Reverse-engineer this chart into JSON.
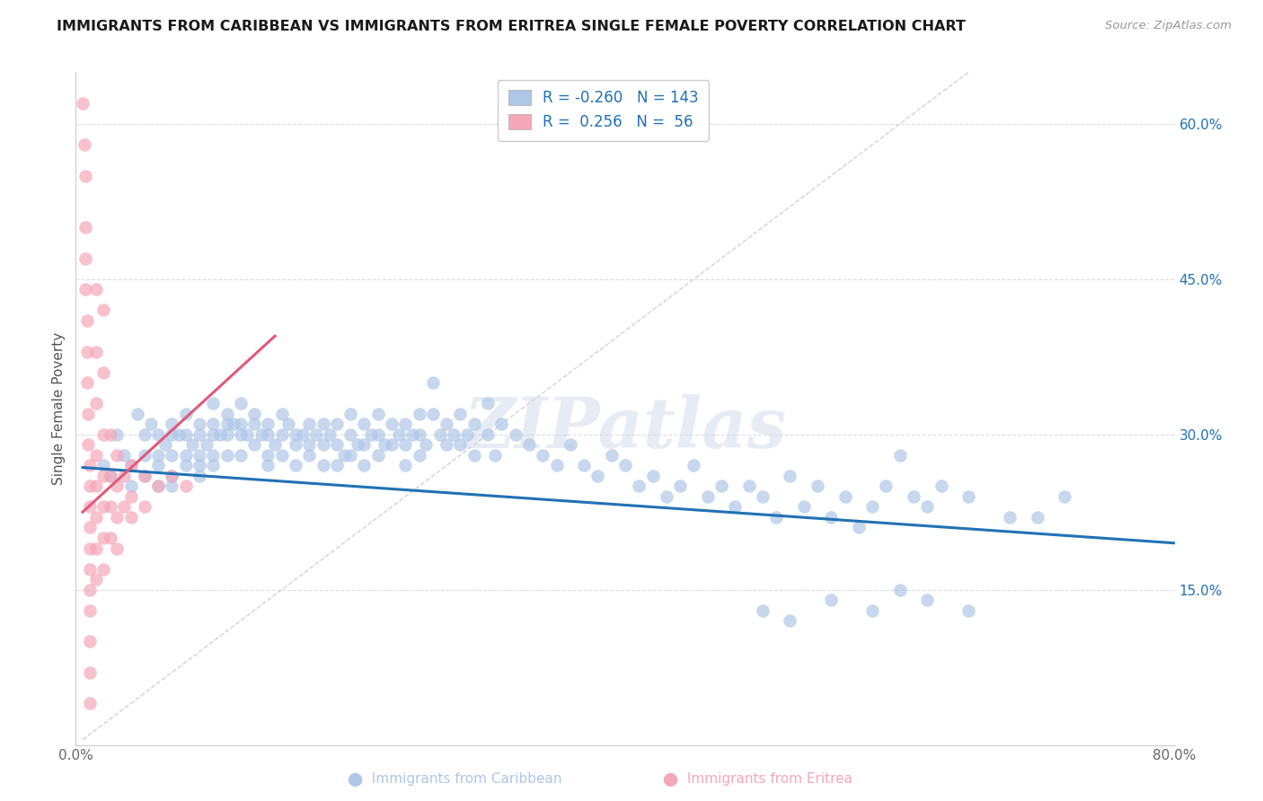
{
  "title": "IMMIGRANTS FROM CARIBBEAN VS IMMIGRANTS FROM ERITREA SINGLE FEMALE POVERTY CORRELATION CHART",
  "source": "Source: ZipAtlas.com",
  "ylabel": "Single Female Poverty",
  "x_min": 0.0,
  "x_max": 0.8,
  "y_min": 0.0,
  "y_max": 0.65,
  "y_tick_labels_right": [
    "15.0%",
    "30.0%",
    "45.0%",
    "60.0%"
  ],
  "y_ticks_right": [
    0.15,
    0.3,
    0.45,
    0.6
  ],
  "legend_r1": "-0.260",
  "legend_n1": "143",
  "legend_r2": "0.256",
  "legend_n2": "56",
  "caribbean_color": "#aec6e8",
  "eritrea_color": "#f4a7b9",
  "caribbean_line_color": "#2171b5",
  "eritrea_line_color": "#e05a7a",
  "dashed_line_color": "#c8c8c8",
  "watermark": "ZIPatlas",
  "carib_line_x0": 0.005,
  "carib_line_y0": 0.268,
  "carib_line_x1": 0.8,
  "carib_line_y1": 0.195,
  "erit_line_x0": 0.005,
  "erit_line_y0": 0.225,
  "erit_line_x1": 0.145,
  "erit_line_y1": 0.395,
  "caribbean_scatter": [
    [
      0.02,
      0.27
    ],
    [
      0.025,
      0.26
    ],
    [
      0.03,
      0.3
    ],
    [
      0.035,
      0.28
    ],
    [
      0.04,
      0.27
    ],
    [
      0.04,
      0.25
    ],
    [
      0.045,
      0.32
    ],
    [
      0.05,
      0.3
    ],
    [
      0.05,
      0.28
    ],
    [
      0.05,
      0.26
    ],
    [
      0.055,
      0.31
    ],
    [
      0.06,
      0.3
    ],
    [
      0.06,
      0.28
    ],
    [
      0.06,
      0.27
    ],
    [
      0.06,
      0.25
    ],
    [
      0.065,
      0.29
    ],
    [
      0.07,
      0.31
    ],
    [
      0.07,
      0.3
    ],
    [
      0.07,
      0.28
    ],
    [
      0.07,
      0.26
    ],
    [
      0.07,
      0.25
    ],
    [
      0.075,
      0.3
    ],
    [
      0.08,
      0.32
    ],
    [
      0.08,
      0.3
    ],
    [
      0.08,
      0.28
    ],
    [
      0.08,
      0.27
    ],
    [
      0.085,
      0.29
    ],
    [
      0.09,
      0.31
    ],
    [
      0.09,
      0.3
    ],
    [
      0.09,
      0.28
    ],
    [
      0.09,
      0.27
    ],
    [
      0.09,
      0.26
    ],
    [
      0.095,
      0.29
    ],
    [
      0.1,
      0.33
    ],
    [
      0.1,
      0.31
    ],
    [
      0.1,
      0.3
    ],
    [
      0.1,
      0.28
    ],
    [
      0.1,
      0.27
    ],
    [
      0.105,
      0.3
    ],
    [
      0.11,
      0.32
    ],
    [
      0.11,
      0.31
    ],
    [
      0.11,
      0.3
    ],
    [
      0.11,
      0.28
    ],
    [
      0.115,
      0.31
    ],
    [
      0.12,
      0.33
    ],
    [
      0.12,
      0.31
    ],
    [
      0.12,
      0.3
    ],
    [
      0.12,
      0.28
    ],
    [
      0.125,
      0.3
    ],
    [
      0.13,
      0.32
    ],
    [
      0.13,
      0.31
    ],
    [
      0.13,
      0.29
    ],
    [
      0.135,
      0.3
    ],
    [
      0.14,
      0.31
    ],
    [
      0.14,
      0.3
    ],
    [
      0.14,
      0.28
    ],
    [
      0.14,
      0.27
    ],
    [
      0.145,
      0.29
    ],
    [
      0.15,
      0.32
    ],
    [
      0.15,
      0.3
    ],
    [
      0.15,
      0.28
    ],
    [
      0.155,
      0.31
    ],
    [
      0.16,
      0.3
    ],
    [
      0.16,
      0.29
    ],
    [
      0.16,
      0.27
    ],
    [
      0.165,
      0.3
    ],
    [
      0.17,
      0.31
    ],
    [
      0.17,
      0.29
    ],
    [
      0.17,
      0.28
    ],
    [
      0.175,
      0.3
    ],
    [
      0.18,
      0.31
    ],
    [
      0.18,
      0.29
    ],
    [
      0.18,
      0.27
    ],
    [
      0.185,
      0.3
    ],
    [
      0.19,
      0.31
    ],
    [
      0.19,
      0.29
    ],
    [
      0.19,
      0.27
    ],
    [
      0.195,
      0.28
    ],
    [
      0.2,
      0.32
    ],
    [
      0.2,
      0.3
    ],
    [
      0.2,
      0.28
    ],
    [
      0.205,
      0.29
    ],
    [
      0.21,
      0.31
    ],
    [
      0.21,
      0.29
    ],
    [
      0.21,
      0.27
    ],
    [
      0.215,
      0.3
    ],
    [
      0.22,
      0.32
    ],
    [
      0.22,
      0.3
    ],
    [
      0.22,
      0.28
    ],
    [
      0.225,
      0.29
    ],
    [
      0.23,
      0.31
    ],
    [
      0.23,
      0.29
    ],
    [
      0.235,
      0.3
    ],
    [
      0.24,
      0.31
    ],
    [
      0.24,
      0.29
    ],
    [
      0.24,
      0.27
    ],
    [
      0.245,
      0.3
    ],
    [
      0.25,
      0.32
    ],
    [
      0.25,
      0.3
    ],
    [
      0.25,
      0.28
    ],
    [
      0.255,
      0.29
    ],
    [
      0.26,
      0.35
    ],
    [
      0.26,
      0.32
    ],
    [
      0.265,
      0.3
    ],
    [
      0.27,
      0.31
    ],
    [
      0.27,
      0.29
    ],
    [
      0.275,
      0.3
    ],
    [
      0.28,
      0.32
    ],
    [
      0.28,
      0.29
    ],
    [
      0.285,
      0.3
    ],
    [
      0.29,
      0.31
    ],
    [
      0.29,
      0.28
    ],
    [
      0.3,
      0.33
    ],
    [
      0.3,
      0.3
    ],
    [
      0.305,
      0.28
    ],
    [
      0.31,
      0.31
    ],
    [
      0.32,
      0.3
    ],
    [
      0.33,
      0.29
    ],
    [
      0.34,
      0.28
    ],
    [
      0.35,
      0.27
    ],
    [
      0.36,
      0.29
    ],
    [
      0.37,
      0.27
    ],
    [
      0.38,
      0.26
    ],
    [
      0.39,
      0.28
    ],
    [
      0.4,
      0.27
    ],
    [
      0.41,
      0.25
    ],
    [
      0.42,
      0.26
    ],
    [
      0.43,
      0.24
    ],
    [
      0.44,
      0.25
    ],
    [
      0.45,
      0.27
    ],
    [
      0.46,
      0.24
    ],
    [
      0.47,
      0.25
    ],
    [
      0.48,
      0.23
    ],
    [
      0.49,
      0.25
    ],
    [
      0.5,
      0.24
    ],
    [
      0.51,
      0.22
    ],
    [
      0.52,
      0.26
    ],
    [
      0.53,
      0.23
    ],
    [
      0.54,
      0.25
    ],
    [
      0.55,
      0.22
    ],
    [
      0.56,
      0.24
    ],
    [
      0.57,
      0.21
    ],
    [
      0.58,
      0.23
    ],
    [
      0.59,
      0.25
    ],
    [
      0.6,
      0.28
    ],
    [
      0.61,
      0.24
    ],
    [
      0.62,
      0.23
    ],
    [
      0.63,
      0.25
    ],
    [
      0.65,
      0.24
    ],
    [
      0.68,
      0.22
    ],
    [
      0.7,
      0.22
    ],
    [
      0.72,
      0.24
    ],
    [
      0.5,
      0.13
    ],
    [
      0.52,
      0.12
    ],
    [
      0.55,
      0.14
    ],
    [
      0.58,
      0.13
    ],
    [
      0.6,
      0.15
    ],
    [
      0.62,
      0.14
    ],
    [
      0.65,
      0.13
    ]
  ],
  "eritrea_scatter": [
    [
      0.005,
      0.62
    ],
    [
      0.006,
      0.58
    ],
    [
      0.007,
      0.55
    ],
    [
      0.007,
      0.5
    ],
    [
      0.007,
      0.47
    ],
    [
      0.007,
      0.44
    ],
    [
      0.008,
      0.41
    ],
    [
      0.008,
      0.38
    ],
    [
      0.008,
      0.35
    ],
    [
      0.009,
      0.32
    ],
    [
      0.009,
      0.29
    ],
    [
      0.01,
      0.27
    ],
    [
      0.01,
      0.25
    ],
    [
      0.01,
      0.23
    ],
    [
      0.01,
      0.21
    ],
    [
      0.01,
      0.19
    ],
    [
      0.01,
      0.17
    ],
    [
      0.01,
      0.15
    ],
    [
      0.01,
      0.13
    ],
    [
      0.01,
      0.1
    ],
    [
      0.01,
      0.07
    ],
    [
      0.01,
      0.04
    ],
    [
      0.015,
      0.44
    ],
    [
      0.015,
      0.38
    ],
    [
      0.015,
      0.33
    ],
    [
      0.015,
      0.28
    ],
    [
      0.015,
      0.25
    ],
    [
      0.015,
      0.22
    ],
    [
      0.015,
      0.19
    ],
    [
      0.015,
      0.16
    ],
    [
      0.02,
      0.42
    ],
    [
      0.02,
      0.36
    ],
    [
      0.02,
      0.3
    ],
    [
      0.02,
      0.26
    ],
    [
      0.02,
      0.23
    ],
    [
      0.02,
      0.2
    ],
    [
      0.02,
      0.17
    ],
    [
      0.025,
      0.3
    ],
    [
      0.025,
      0.26
    ],
    [
      0.025,
      0.23
    ],
    [
      0.025,
      0.2
    ],
    [
      0.03,
      0.28
    ],
    [
      0.03,
      0.25
    ],
    [
      0.03,
      0.22
    ],
    [
      0.03,
      0.19
    ],
    [
      0.035,
      0.26
    ],
    [
      0.035,
      0.23
    ],
    [
      0.04,
      0.27
    ],
    [
      0.04,
      0.24
    ],
    [
      0.04,
      0.22
    ],
    [
      0.05,
      0.26
    ],
    [
      0.05,
      0.23
    ],
    [
      0.06,
      0.25
    ],
    [
      0.07,
      0.26
    ],
    [
      0.08,
      0.25
    ]
  ]
}
